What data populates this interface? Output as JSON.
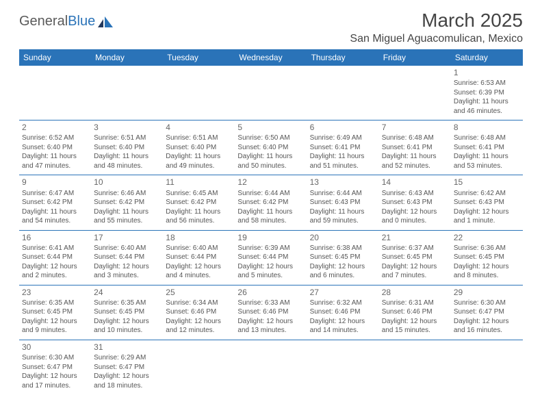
{
  "brand": {
    "name1": "General",
    "name2": "Blue"
  },
  "title": {
    "month": "March 2025",
    "location": "San Miguel Aguacomulican, Mexico"
  },
  "dayHeaders": [
    "Sunday",
    "Monday",
    "Tuesday",
    "Wednesday",
    "Thursday",
    "Friday",
    "Saturday"
  ],
  "colors": {
    "accent": "#2a73b8",
    "text": "#555555",
    "headerText": "#ffffff"
  },
  "weeks": [
    [
      null,
      null,
      null,
      null,
      null,
      null,
      {
        "n": "1",
        "sr": "Sunrise: 6:53 AM",
        "ss": "Sunset: 6:39 PM",
        "dl1": "Daylight: 11 hours",
        "dl2": "and 46 minutes."
      }
    ],
    [
      {
        "n": "2",
        "sr": "Sunrise: 6:52 AM",
        "ss": "Sunset: 6:40 PM",
        "dl1": "Daylight: 11 hours",
        "dl2": "and 47 minutes."
      },
      {
        "n": "3",
        "sr": "Sunrise: 6:51 AM",
        "ss": "Sunset: 6:40 PM",
        "dl1": "Daylight: 11 hours",
        "dl2": "and 48 minutes."
      },
      {
        "n": "4",
        "sr": "Sunrise: 6:51 AM",
        "ss": "Sunset: 6:40 PM",
        "dl1": "Daylight: 11 hours",
        "dl2": "and 49 minutes."
      },
      {
        "n": "5",
        "sr": "Sunrise: 6:50 AM",
        "ss": "Sunset: 6:40 PM",
        "dl1": "Daylight: 11 hours",
        "dl2": "and 50 minutes."
      },
      {
        "n": "6",
        "sr": "Sunrise: 6:49 AM",
        "ss": "Sunset: 6:41 PM",
        "dl1": "Daylight: 11 hours",
        "dl2": "and 51 minutes."
      },
      {
        "n": "7",
        "sr": "Sunrise: 6:48 AM",
        "ss": "Sunset: 6:41 PM",
        "dl1": "Daylight: 11 hours",
        "dl2": "and 52 minutes."
      },
      {
        "n": "8",
        "sr": "Sunrise: 6:48 AM",
        "ss": "Sunset: 6:41 PM",
        "dl1": "Daylight: 11 hours",
        "dl2": "and 53 minutes."
      }
    ],
    [
      {
        "n": "9",
        "sr": "Sunrise: 6:47 AM",
        "ss": "Sunset: 6:42 PM",
        "dl1": "Daylight: 11 hours",
        "dl2": "and 54 minutes."
      },
      {
        "n": "10",
        "sr": "Sunrise: 6:46 AM",
        "ss": "Sunset: 6:42 PM",
        "dl1": "Daylight: 11 hours",
        "dl2": "and 55 minutes."
      },
      {
        "n": "11",
        "sr": "Sunrise: 6:45 AM",
        "ss": "Sunset: 6:42 PM",
        "dl1": "Daylight: 11 hours",
        "dl2": "and 56 minutes."
      },
      {
        "n": "12",
        "sr": "Sunrise: 6:44 AM",
        "ss": "Sunset: 6:42 PM",
        "dl1": "Daylight: 11 hours",
        "dl2": "and 58 minutes."
      },
      {
        "n": "13",
        "sr": "Sunrise: 6:44 AM",
        "ss": "Sunset: 6:43 PM",
        "dl1": "Daylight: 11 hours",
        "dl2": "and 59 minutes."
      },
      {
        "n": "14",
        "sr": "Sunrise: 6:43 AM",
        "ss": "Sunset: 6:43 PM",
        "dl1": "Daylight: 12 hours",
        "dl2": "and 0 minutes."
      },
      {
        "n": "15",
        "sr": "Sunrise: 6:42 AM",
        "ss": "Sunset: 6:43 PM",
        "dl1": "Daylight: 12 hours",
        "dl2": "and 1 minute."
      }
    ],
    [
      {
        "n": "16",
        "sr": "Sunrise: 6:41 AM",
        "ss": "Sunset: 6:44 PM",
        "dl1": "Daylight: 12 hours",
        "dl2": "and 2 minutes."
      },
      {
        "n": "17",
        "sr": "Sunrise: 6:40 AM",
        "ss": "Sunset: 6:44 PM",
        "dl1": "Daylight: 12 hours",
        "dl2": "and 3 minutes."
      },
      {
        "n": "18",
        "sr": "Sunrise: 6:40 AM",
        "ss": "Sunset: 6:44 PM",
        "dl1": "Daylight: 12 hours",
        "dl2": "and 4 minutes."
      },
      {
        "n": "19",
        "sr": "Sunrise: 6:39 AM",
        "ss": "Sunset: 6:44 PM",
        "dl1": "Daylight: 12 hours",
        "dl2": "and 5 minutes."
      },
      {
        "n": "20",
        "sr": "Sunrise: 6:38 AM",
        "ss": "Sunset: 6:45 PM",
        "dl1": "Daylight: 12 hours",
        "dl2": "and 6 minutes."
      },
      {
        "n": "21",
        "sr": "Sunrise: 6:37 AM",
        "ss": "Sunset: 6:45 PM",
        "dl1": "Daylight: 12 hours",
        "dl2": "and 7 minutes."
      },
      {
        "n": "22",
        "sr": "Sunrise: 6:36 AM",
        "ss": "Sunset: 6:45 PM",
        "dl1": "Daylight: 12 hours",
        "dl2": "and 8 minutes."
      }
    ],
    [
      {
        "n": "23",
        "sr": "Sunrise: 6:35 AM",
        "ss": "Sunset: 6:45 PM",
        "dl1": "Daylight: 12 hours",
        "dl2": "and 9 minutes."
      },
      {
        "n": "24",
        "sr": "Sunrise: 6:35 AM",
        "ss": "Sunset: 6:45 PM",
        "dl1": "Daylight: 12 hours",
        "dl2": "and 10 minutes."
      },
      {
        "n": "25",
        "sr": "Sunrise: 6:34 AM",
        "ss": "Sunset: 6:46 PM",
        "dl1": "Daylight: 12 hours",
        "dl2": "and 12 minutes."
      },
      {
        "n": "26",
        "sr": "Sunrise: 6:33 AM",
        "ss": "Sunset: 6:46 PM",
        "dl1": "Daylight: 12 hours",
        "dl2": "and 13 minutes."
      },
      {
        "n": "27",
        "sr": "Sunrise: 6:32 AM",
        "ss": "Sunset: 6:46 PM",
        "dl1": "Daylight: 12 hours",
        "dl2": "and 14 minutes."
      },
      {
        "n": "28",
        "sr": "Sunrise: 6:31 AM",
        "ss": "Sunset: 6:46 PM",
        "dl1": "Daylight: 12 hours",
        "dl2": "and 15 minutes."
      },
      {
        "n": "29",
        "sr": "Sunrise: 6:30 AM",
        "ss": "Sunset: 6:47 PM",
        "dl1": "Daylight: 12 hours",
        "dl2": "and 16 minutes."
      }
    ],
    [
      {
        "n": "30",
        "sr": "Sunrise: 6:30 AM",
        "ss": "Sunset: 6:47 PM",
        "dl1": "Daylight: 12 hours",
        "dl2": "and 17 minutes."
      },
      {
        "n": "31",
        "sr": "Sunrise: 6:29 AM",
        "ss": "Sunset: 6:47 PM",
        "dl1": "Daylight: 12 hours",
        "dl2": "and 18 minutes."
      },
      null,
      null,
      null,
      null,
      null
    ]
  ]
}
